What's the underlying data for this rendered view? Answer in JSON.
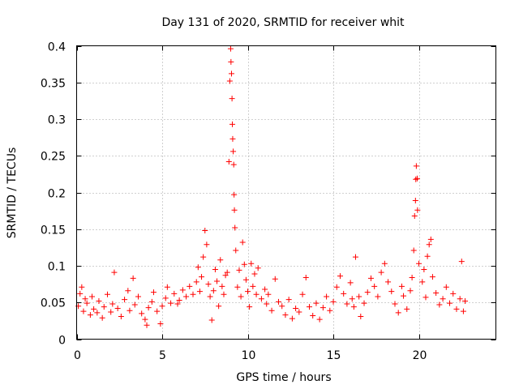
{
  "chart_data": {
    "type": "scatter",
    "title": "Day 131 of 2020, SRMTID for receiver whit",
    "xlabel": "GPS time / hours",
    "ylabel": "SRMTID / TECUs",
    "xlim": [
      0,
      24.5
    ],
    "ylim": [
      0,
      0.4
    ],
    "xticks": [
      0,
      5,
      10,
      15,
      20
    ],
    "yticks": [
      0,
      0.05,
      0.1,
      0.15,
      0.2,
      0.25,
      0.3,
      0.35,
      0.4
    ],
    "xtick_labels": [
      "0",
      "5",
      "10",
      "15",
      "20"
    ],
    "ytick_labels": [
      "0",
      "0.05",
      "0.1",
      "0.15",
      "0.2",
      "0.25",
      "0.3",
      "0.35",
      "0.4"
    ],
    "grid": true,
    "marker": "plus",
    "color": "#ff0000",
    "series": [
      {
        "name": "SRMTID",
        "points": [
          [
            0.1,
            0.045
          ],
          [
            0.2,
            0.062
          ],
          [
            0.3,
            0.071
          ],
          [
            0.4,
            0.038
          ],
          [
            0.5,
            0.055
          ],
          [
            0.6,
            0.049
          ],
          [
            0.8,
            0.033
          ],
          [
            0.9,
            0.058
          ],
          [
            1.0,
            0.041
          ],
          [
            1.2,
            0.036
          ],
          [
            1.3,
            0.052
          ],
          [
            1.5,
            0.029
          ],
          [
            1.6,
            0.044
          ],
          [
            1.8,
            0.061
          ],
          [
            2.0,
            0.037
          ],
          [
            2.1,
            0.048
          ],
          [
            2.2,
            0.091
          ],
          [
            2.4,
            0.042
          ],
          [
            2.6,
            0.031
          ],
          [
            2.8,
            0.054
          ],
          [
            3.0,
            0.066
          ],
          [
            3.1,
            0.039
          ],
          [
            3.3,
            0.083
          ],
          [
            3.4,
            0.047
          ],
          [
            3.6,
            0.058
          ],
          [
            3.8,
            0.035
          ],
          [
            4.0,
            0.027
          ],
          [
            4.1,
            0.019
          ],
          [
            4.2,
            0.043
          ],
          [
            4.4,
            0.051
          ],
          [
            4.5,
            0.064
          ],
          [
            4.7,
            0.038
          ],
          [
            4.9,
            0.021
          ],
          [
            5.0,
            0.045
          ],
          [
            5.2,
            0.056
          ],
          [
            5.3,
            0.071
          ],
          [
            5.5,
            0.049
          ],
          [
            5.7,
            0.062
          ],
          [
            5.9,
            0.048
          ],
          [
            6.0,
            0.053
          ],
          [
            6.2,
            0.067
          ],
          [
            6.4,
            0.058
          ],
          [
            6.6,
            0.072
          ],
          [
            6.8,
            0.061
          ],
          [
            7.0,
            0.078
          ],
          [
            7.1,
            0.098
          ],
          [
            7.2,
            0.065
          ],
          [
            7.3,
            0.085
          ],
          [
            7.4,
            0.112
          ],
          [
            7.5,
            0.148
          ],
          [
            7.6,
            0.129
          ],
          [
            7.7,
            0.075
          ],
          [
            7.8,
            0.058
          ],
          [
            7.9,
            0.026
          ],
          [
            8.0,
            0.066
          ],
          [
            8.1,
            0.095
          ],
          [
            8.2,
            0.079
          ],
          [
            8.3,
            0.045
          ],
          [
            8.4,
            0.108
          ],
          [
            8.5,
            0.072
          ],
          [
            8.6,
            0.061
          ],
          [
            8.7,
            0.087
          ],
          [
            8.8,
            0.091
          ],
          [
            8.9,
            0.242
          ],
          [
            8.95,
            0.352
          ],
          [
            9.0,
            0.396
          ],
          [
            9.02,
            0.378
          ],
          [
            9.05,
            0.362
          ],
          [
            9.08,
            0.328
          ],
          [
            9.1,
            0.293
          ],
          [
            9.12,
            0.273
          ],
          [
            9.15,
            0.256
          ],
          [
            9.18,
            0.238
          ],
          [
            9.2,
            0.197
          ],
          [
            9.22,
            0.176
          ],
          [
            9.25,
            0.152
          ],
          [
            9.3,
            0.121
          ],
          [
            9.4,
            0.071
          ],
          [
            9.5,
            0.094
          ],
          [
            9.6,
            0.058
          ],
          [
            9.7,
            0.132
          ],
          [
            9.8,
            0.102
          ],
          [
            9.9,
            0.081
          ],
          [
            10.0,
            0.065
          ],
          [
            10.1,
            0.044
          ],
          [
            10.2,
            0.103
          ],
          [
            10.3,
            0.072
          ],
          [
            10.4,
            0.089
          ],
          [
            10.5,
            0.061
          ],
          [
            10.6,
            0.097
          ],
          [
            10.8,
            0.055
          ],
          [
            11.0,
            0.068
          ],
          [
            11.1,
            0.048
          ],
          [
            11.2,
            0.061
          ],
          [
            11.4,
            0.039
          ],
          [
            11.6,
            0.082
          ],
          [
            11.8,
            0.051
          ],
          [
            12.0,
            0.045
          ],
          [
            12.2,
            0.033
          ],
          [
            12.4,
            0.054
          ],
          [
            12.6,
            0.028
          ],
          [
            12.8,
            0.042
          ],
          [
            13.0,
            0.037
          ],
          [
            13.2,
            0.061
          ],
          [
            13.4,
            0.084
          ],
          [
            13.6,
            0.044
          ],
          [
            13.8,
            0.032
          ],
          [
            14.0,
            0.049
          ],
          [
            14.2,
            0.027
          ],
          [
            14.4,
            0.043
          ],
          [
            14.6,
            0.058
          ],
          [
            14.8,
            0.039
          ],
          [
            15.0,
            0.051
          ],
          [
            15.2,
            0.071
          ],
          [
            15.4,
            0.086
          ],
          [
            15.6,
            0.062
          ],
          [
            15.8,
            0.048
          ],
          [
            16.0,
            0.077
          ],
          [
            16.1,
            0.055
          ],
          [
            16.2,
            0.044
          ],
          [
            16.3,
            0.112
          ],
          [
            16.5,
            0.058
          ],
          [
            16.6,
            0.031
          ],
          [
            16.8,
            0.049
          ],
          [
            17.0,
            0.064
          ],
          [
            17.2,
            0.083
          ],
          [
            17.4,
            0.072
          ],
          [
            17.6,
            0.058
          ],
          [
            17.8,
            0.091
          ],
          [
            18.0,
            0.103
          ],
          [
            18.2,
            0.078
          ],
          [
            18.4,
            0.065
          ],
          [
            18.6,
            0.048
          ],
          [
            18.8,
            0.036
          ],
          [
            19.0,
            0.072
          ],
          [
            19.1,
            0.059
          ],
          [
            19.3,
            0.041
          ],
          [
            19.5,
            0.066
          ],
          [
            19.6,
            0.084
          ],
          [
            19.7,
            0.121
          ],
          [
            19.75,
            0.168
          ],
          [
            19.8,
            0.189
          ],
          [
            19.82,
            0.218
          ],
          [
            19.85,
            0.236
          ],
          [
            19.9,
            0.219
          ],
          [
            19.92,
            0.176
          ],
          [
            20.0,
            0.103
          ],
          [
            20.2,
            0.078
          ],
          [
            20.3,
            0.095
          ],
          [
            20.4,
            0.057
          ],
          [
            20.5,
            0.113
          ],
          [
            20.6,
            0.129
          ],
          [
            20.7,
            0.136
          ],
          [
            20.8,
            0.085
          ],
          [
            21.0,
            0.063
          ],
          [
            21.2,
            0.047
          ],
          [
            21.4,
            0.055
          ],
          [
            21.6,
            0.071
          ],
          [
            21.8,
            0.049
          ],
          [
            22.0,
            0.062
          ],
          [
            22.2,
            0.041
          ],
          [
            22.4,
            0.055
          ],
          [
            22.5,
            0.106
          ],
          [
            22.6,
            0.038
          ],
          [
            22.7,
            0.052
          ]
        ]
      }
    ]
  }
}
